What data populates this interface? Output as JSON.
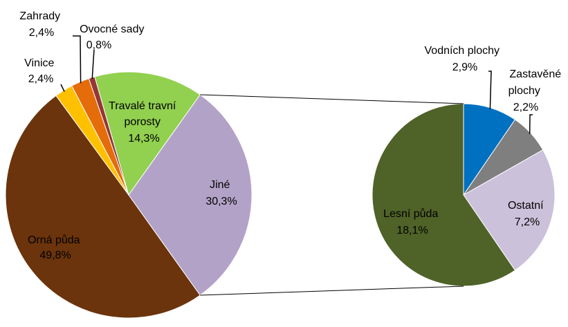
{
  "chart_data": {
    "type": "pie",
    "subtype": "pie-of-pie",
    "grid": false,
    "legend": "none",
    "main_pie": {
      "slices": [
        {
          "label": "Orná půda",
          "value": 49.8,
          "value_label": "49,8%",
          "color": "#6b340c"
        },
        {
          "label": "Vinice",
          "value": 2.4,
          "value_label": "2,4%",
          "color": "#ffc000"
        },
        {
          "label": "Zahrady",
          "value": 2.4,
          "value_label": "2,4%",
          "color": "#e46c0a"
        },
        {
          "label": "Ovocné sady",
          "value": 0.8,
          "value_label": "0,8%",
          "color": "#953735"
        },
        {
          "label": "Travalé travní porosty",
          "value": 14.3,
          "value_label": "14,3%",
          "color": "#92d050"
        },
        {
          "label": "Jiné",
          "value": 30.3,
          "value_label": "30,3%",
          "color": "#b3a2c7"
        }
      ]
    },
    "secondary_pie": {
      "breakdown_of": "Jiné",
      "slices": [
        {
          "label": "Vodních plochy",
          "value": 2.9,
          "value_label": "2,9%",
          "color": "#0070c0"
        },
        {
          "label": "Zastavěné plochy",
          "value": 2.2,
          "value_label": "2,2%",
          "color": "#7f7f7f"
        },
        {
          "label": "Ostatní",
          "value": 7.2,
          "value_label": "7,2%",
          "color": "#ccc1da"
        },
        {
          "label": "Lesní půda",
          "value": 18.1,
          "value_label": "18,1%",
          "color": "#4f6228"
        }
      ]
    }
  },
  "labels": {
    "orna": {
      "line1": "Orná půda",
      "line2": "49,8%"
    },
    "vinice": {
      "line1": "Vinice",
      "line2": "2,4%"
    },
    "zahrady": {
      "line1": "Zahrady",
      "line2": "2,4%"
    },
    "ovocne": {
      "line1": "Ovocné sady",
      "line2": "0,8%"
    },
    "travale": {
      "line1": "Travalé travní",
      "line2": "porosty",
      "line3": "14,3%"
    },
    "jine": {
      "line1": "Jiné",
      "line2": "30,3%"
    },
    "vodni": {
      "line1": "Vodních plochy",
      "line2": "2,9%"
    },
    "zastavene": {
      "line1": "Zastavěné",
      "line2": "plochy",
      "line3": "2,2%"
    },
    "ostatni": {
      "line1": "Ostatní",
      "line2": "7,2%"
    },
    "lesni": {
      "line1": "Lesní půda",
      "line2": "18,1%"
    }
  }
}
